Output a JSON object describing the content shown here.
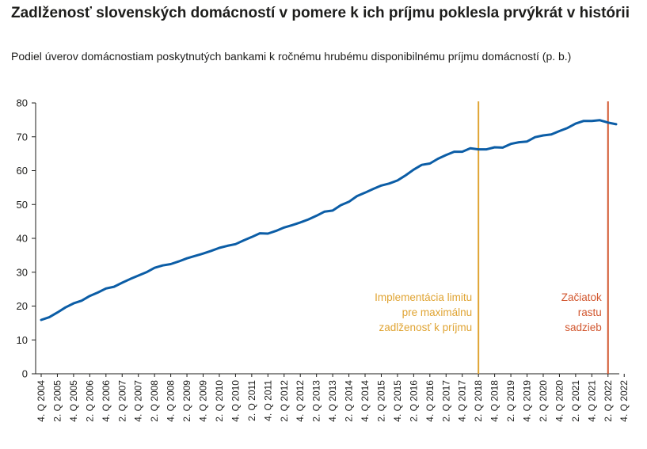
{
  "title": "Zadlženosť slovenských domácností v pomere k ich príjmu poklesla prvýkrát v histórii",
  "subtitle": "Podiel úverov domácnostiam poskytnutých bankami k ročnému hrubému disponibilnému príjmu domácností (p. b.)",
  "chart_data": {
    "type": "line",
    "title": "Zadlženosť slovenských domácností v pomere k ich príjmu poklesla prvýkrát v histórii",
    "subtitle": "Podiel úverov domácnostiam poskytnutých bankami k ročnému hrubému disponibilnému príjmu domácností (p. b.)",
    "ylim": [
      0,
      80
    ],
    "yticks": [
      0,
      10,
      20,
      30,
      40,
      50,
      60,
      70,
      80
    ],
    "x_start": "4. Q 2004",
    "x_end": "4. Q 2022",
    "x_tick_labels": [
      "4. Q 2004",
      "2. Q 2005",
      "4. Q 2005",
      "2. Q 2006",
      "4. Q 2006",
      "2. Q 2007",
      "4. Q 2007",
      "2. Q 2008",
      "4. Q 2008",
      "2. Q 2009",
      "4. Q 2009",
      "2. Q 2010",
      "4. Q 2010",
      "2. Q 2011",
      "4. Q 2011",
      "2. Q 2012",
      "4. Q 2012",
      "2. Q 2013",
      "4. Q 2013",
      "2. Q 2014",
      "4. Q 2014",
      "2. Q 2015",
      "4. Q 2015",
      "2. Q 2016",
      "4. Q 2016",
      "2. Q 2017",
      "4. Q 2017",
      "2. Q 2018",
      "4. Q 2018",
      "2. Q 2019",
      "4. Q 2019",
      "2. Q 2020",
      "4. Q 2020",
      "2. Q 2021",
      "4. Q 2021",
      "2. Q 2022",
      "4. Q 2022"
    ],
    "series": [
      {
        "color": "#0b5da6",
        "values": [
          15.9,
          16.7,
          18.1,
          19.6,
          20.8,
          21.6,
          23.0,
          24.0,
          25.2,
          25.7,
          26.9,
          28.0,
          29.0,
          30.0,
          31.3,
          32.0,
          32.4,
          33.2,
          34.1,
          34.8,
          35.5,
          36.3,
          37.2,
          37.8,
          38.3,
          39.4,
          40.4,
          41.5,
          41.4,
          42.2,
          43.2,
          43.9,
          44.7,
          45.6,
          46.7,
          47.9,
          48.2,
          49.8,
          50.8,
          52.5,
          53.5,
          54.6,
          55.6,
          56.2,
          57.1,
          58.6,
          60.3,
          61.7,
          62.1,
          63.5,
          64.6,
          65.6,
          65.6,
          66.6,
          66.3,
          66.3,
          66.9,
          66.8,
          67.9,
          68.4,
          68.6,
          69.9,
          70.4,
          70.7,
          71.7,
          72.6,
          73.9,
          74.7,
          74.7,
          74.9,
          74.2,
          73.7
        ]
      }
    ],
    "vertical_markers": [
      {
        "position": "2. Q 2018",
        "color": "#e0a433",
        "label_lines": [
          "Implementácia limitu",
          "pre maximálnu",
          "zadlženosť k príjmu"
        ]
      },
      {
        "position": "2. Q 2022",
        "color": "#d2572f",
        "label_lines": [
          "Začiatok",
          "rastu",
          "sadzieb"
        ]
      }
    ],
    "grid": false
  }
}
